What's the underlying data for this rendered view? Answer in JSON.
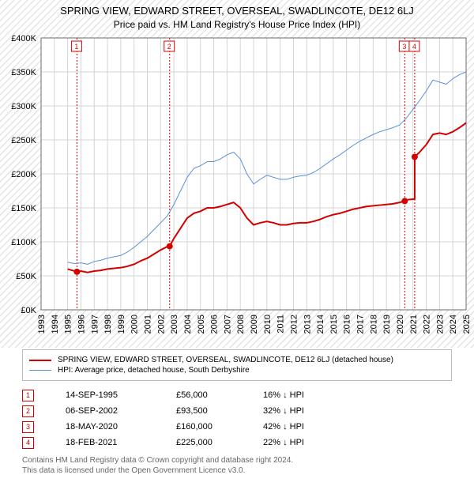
{
  "title": "SPRING VIEW, EDWARD STREET, OVERSEAL, SWADLINCOTE, DE12 6LJ",
  "subtitle": "Price paid vs. HM Land Registry's House Price Index (HPI)",
  "chart": {
    "type": "line",
    "plot_bg": "#ffffff",
    "out_bg_hatch_color": "#e5e5e5",
    "grid_color": "#d4d4d4",
    "axis_color": "#6d6d6d",
    "x": {
      "min": 1993,
      "max": 2025,
      "tick_step": 1
    },
    "y": {
      "min": 0,
      "max": 400000,
      "tick_step": 50000,
      "tick_labels": [
        "£0K",
        "£50K",
        "£100K",
        "£150K",
        "£200K",
        "£250K",
        "£300K",
        "£350K",
        "£400K"
      ]
    },
    "series": [
      {
        "name": "property",
        "label": "SPRING VIEW, EDWARD STREET, OVERSEAL, SWADLINCOTE, DE12 6LJ (detached house)",
        "color": "#d40000",
        "width": 2,
        "data": [
          [
            1995.0,
            60000
          ],
          [
            1995.7,
            56000
          ],
          [
            1996.0,
            57000
          ],
          [
            1996.5,
            55000
          ],
          [
            1997.0,
            57000
          ],
          [
            1997.5,
            58000
          ],
          [
            1998.0,
            60000
          ],
          [
            1998.5,
            61000
          ],
          [
            1999.0,
            62000
          ],
          [
            1999.5,
            64000
          ],
          [
            2000.0,
            67000
          ],
          [
            2000.5,
            72000
          ],
          [
            2001.0,
            76000
          ],
          [
            2001.5,
            82000
          ],
          [
            2002.0,
            88000
          ],
          [
            2002.5,
            93000
          ],
          [
            2002.68,
            93500
          ],
          [
            2003.0,
            105000
          ],
          [
            2003.5,
            120000
          ],
          [
            2004.0,
            135000
          ],
          [
            2004.5,
            142000
          ],
          [
            2005.0,
            145000
          ],
          [
            2005.5,
            150000
          ],
          [
            2006.0,
            150000
          ],
          [
            2006.5,
            152000
          ],
          [
            2007.0,
            155000
          ],
          [
            2007.5,
            158000
          ],
          [
            2008.0,
            150000
          ],
          [
            2008.5,
            135000
          ],
          [
            2009.0,
            125000
          ],
          [
            2009.5,
            128000
          ],
          [
            2010.0,
            130000
          ],
          [
            2010.5,
            128000
          ],
          [
            2011.0,
            125000
          ],
          [
            2011.5,
            125000
          ],
          [
            2012.0,
            127000
          ],
          [
            2012.5,
            128000
          ],
          [
            2013.0,
            128000
          ],
          [
            2013.5,
            130000
          ],
          [
            2014.0,
            133000
          ],
          [
            2014.5,
            137000
          ],
          [
            2015.0,
            140000
          ],
          [
            2015.5,
            142000
          ],
          [
            2016.0,
            145000
          ],
          [
            2016.5,
            148000
          ],
          [
            2017.0,
            150000
          ],
          [
            2017.5,
            152000
          ],
          [
            2018.0,
            153000
          ],
          [
            2018.5,
            154000
          ],
          [
            2019.0,
            155000
          ],
          [
            2019.5,
            156000
          ],
          [
            2020.0,
            158000
          ],
          [
            2020.38,
            160000
          ],
          [
            2020.6,
            162000
          ],
          [
            2021.13,
            163000
          ],
          [
            2021.131,
            225000
          ],
          [
            2021.5,
            232000
          ],
          [
            2022.0,
            243000
          ],
          [
            2022.5,
            258000
          ],
          [
            2023.0,
            260000
          ],
          [
            2023.5,
            258000
          ],
          [
            2024.0,
            262000
          ],
          [
            2024.5,
            268000
          ],
          [
            2025.0,
            275000
          ]
        ]
      },
      {
        "name": "hpi",
        "label": "HPI: Average price, detached house, South Derbyshire",
        "color": "#5a8fd6",
        "width": 1,
        "data": [
          [
            1995.0,
            70000
          ],
          [
            1995.5,
            68000
          ],
          [
            1996.0,
            69000
          ],
          [
            1996.5,
            67000
          ],
          [
            1997.0,
            71000
          ],
          [
            1997.5,
            73000
          ],
          [
            1998.0,
            76000
          ],
          [
            1998.5,
            78000
          ],
          [
            1999.0,
            80000
          ],
          [
            1999.5,
            85000
          ],
          [
            2000.0,
            92000
          ],
          [
            2000.5,
            100000
          ],
          [
            2001.0,
            108000
          ],
          [
            2001.5,
            118000
          ],
          [
            2002.0,
            128000
          ],
          [
            2002.5,
            138000
          ],
          [
            2003.0,
            155000
          ],
          [
            2003.5,
            175000
          ],
          [
            2004.0,
            195000
          ],
          [
            2004.5,
            208000
          ],
          [
            2005.0,
            212000
          ],
          [
            2005.5,
            218000
          ],
          [
            2006.0,
            218000
          ],
          [
            2006.5,
            222000
          ],
          [
            2007.0,
            228000
          ],
          [
            2007.5,
            232000
          ],
          [
            2008.0,
            222000
          ],
          [
            2008.5,
            200000
          ],
          [
            2009.0,
            185000
          ],
          [
            2009.5,
            192000
          ],
          [
            2010.0,
            198000
          ],
          [
            2010.5,
            195000
          ],
          [
            2011.0,
            192000
          ],
          [
            2011.5,
            192000
          ],
          [
            2012.0,
            195000
          ],
          [
            2012.5,
            197000
          ],
          [
            2013.0,
            198000
          ],
          [
            2013.5,
            202000
          ],
          [
            2014.0,
            208000
          ],
          [
            2014.5,
            215000
          ],
          [
            2015.0,
            222000
          ],
          [
            2015.5,
            228000
          ],
          [
            2016.0,
            235000
          ],
          [
            2016.5,
            242000
          ],
          [
            2017.0,
            248000
          ],
          [
            2017.5,
            253000
          ],
          [
            2018.0,
            258000
          ],
          [
            2018.5,
            262000
          ],
          [
            2019.0,
            265000
          ],
          [
            2019.5,
            268000
          ],
          [
            2020.0,
            272000
          ],
          [
            2020.5,
            282000
          ],
          [
            2021.0,
            295000
          ],
          [
            2021.5,
            308000
          ],
          [
            2022.0,
            322000
          ],
          [
            2022.5,
            338000
          ],
          [
            2023.0,
            335000
          ],
          [
            2023.5,
            332000
          ],
          [
            2024.0,
            340000
          ],
          [
            2024.5,
            346000
          ],
          [
            2025.0,
            350000
          ]
        ]
      }
    ],
    "sale_markers": [
      {
        "n": "1",
        "x": 1995.7,
        "y_line_top": 400000,
        "dot_y": 56000
      },
      {
        "n": "2",
        "x": 2002.68,
        "y_line_top": 400000,
        "dot_y": 93500
      },
      {
        "n": "3",
        "x": 2020.38,
        "y_line_top": 400000,
        "dot_y": 160000
      },
      {
        "n": "4",
        "x": 2021.13,
        "y_line_top": 400000,
        "dot_y": 225000
      }
    ],
    "marker_vline_color": "#d40000",
    "marker_vline_dash": "2,2",
    "marker_dot_color": "#d40000",
    "marker_box_border": "#d40000"
  },
  "legend": {
    "rows": [
      {
        "color": "#d40000",
        "width": 2,
        "label": "SPRING VIEW, EDWARD STREET, OVERSEAL, SWADLINCOTE, DE12 6LJ (detached house)"
      },
      {
        "color": "#5a8fd6",
        "width": 1,
        "label": "HPI: Average price, detached house, South Derbyshire"
      }
    ]
  },
  "sales": [
    {
      "n": "1",
      "date": "14-SEP-1995",
      "price": "£56,000",
      "diff": "16% ↓ HPI"
    },
    {
      "n": "2",
      "date": "06-SEP-2002",
      "price": "£93,500",
      "diff": "32% ↓ HPI"
    },
    {
      "n": "3",
      "date": "18-MAY-2020",
      "price": "£160,000",
      "diff": "42% ↓ HPI"
    },
    {
      "n": "4",
      "date": "18-FEB-2021",
      "price": "£225,000",
      "diff": "22% ↓ HPI"
    }
  ],
  "footer": {
    "line1": "Contains HM Land Registry data © Crown copyright and database right 2024.",
    "line2": "This data is licensed under the Open Government Licence v3.0."
  }
}
